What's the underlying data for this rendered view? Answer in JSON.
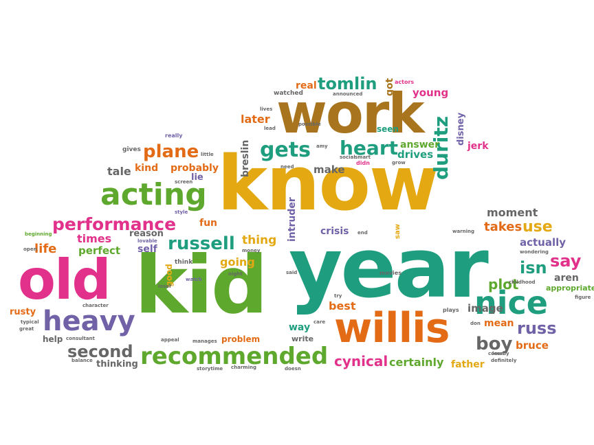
{
  "colors": {
    "gold": "#E3A812",
    "teal": "#1E9E7E",
    "green": "#5FA82E",
    "pink": "#E2318A",
    "orange": "#E36B16",
    "purple": "#7162A8",
    "brown": "#A8741E",
    "gray": "#666666"
  },
  "words": {
    "know": "know",
    "kid": "kid",
    "year": "year",
    "old": "old",
    "work": "work",
    "willis": "willis",
    "nice": "nice",
    "heavy": "heavy",
    "acting": "acting",
    "recommended": "recommended",
    "performance": "performance",
    "tomlin": "tomlin",
    "gets": "gets",
    "heart": "heart",
    "plane": "plane",
    "duritz": "duritz",
    "russell": "russell",
    "second": "second",
    "cynical": "cynical",
    "certainly": "certainly",
    "boy": "boy",
    "russ": "russ",
    "say": "say",
    "use": "use",
    "isn": "isn",
    "plot": "plot",
    "moment": "moment",
    "takes": "takes",
    "actually": "actually",
    "best": "best",
    "image": "image",
    "mean": "mean",
    "bruce": "bruce",
    "father": "father",
    "crisis": "crisis",
    "intruder": "intruder",
    "breslin": "breslin",
    "make": "make",
    "later": "later",
    "answer": "answer",
    "drives": "drives",
    "real": "real",
    "young": "young",
    "got": "got",
    "disney": "disney",
    "jerk": "jerk",
    "tale": "tale",
    "probably": "probably",
    "lie": "lie",
    "life": "life",
    "times": "times",
    "perfect": "perfect",
    "reason": "reason",
    "self": "self",
    "good": "good",
    "fun": "fun",
    "thing": "thing",
    "going": "going",
    "problem": "problem",
    "thinking": "thinking",
    "help": "help",
    "rusty": "rusty",
    "way": "way",
    "write": "write",
    "aren": "aren",
    "appropriate": "appropriate",
    "seen": "seen",
    "kind": "kind",
    "saw": "saw",
    "watched": "watched",
    "announced": "announced",
    "actors": "actors",
    "lives": "lives",
    "lead": "lead",
    "possible": "possible",
    "really": "really",
    "gives": "gives",
    "little": "little",
    "need": "need",
    "social": "social",
    "smart": "smart",
    "didn": "didn",
    "grow": "grow",
    "amy": "amy",
    "beginning": "beginning",
    "style": "style",
    "lovable": "lovable",
    "think": "think",
    "watch": "watch",
    "loser": "loser",
    "money": "money",
    "night": "night",
    "end": "end",
    "movies": "movies",
    "warning": "warning",
    "wondering": "wondering",
    "childhood": "childhood",
    "figure": "figure",
    "plays": "plays",
    "don": "don",
    "comedy": "comedy",
    "definitely": "definitely",
    "storytime": "storytime",
    "charming": "charming",
    "doesn": "doesn",
    "care": "care",
    "appeal": "appeal",
    "manages": "manages",
    "balance": "balance",
    "consultant": "consultant",
    "typical": "typical",
    "great": "great",
    "character": "character",
    "screen": "screen",
    "said": "said",
    "try": "try",
    "leon": "leon",
    "open": "open"
  }
}
